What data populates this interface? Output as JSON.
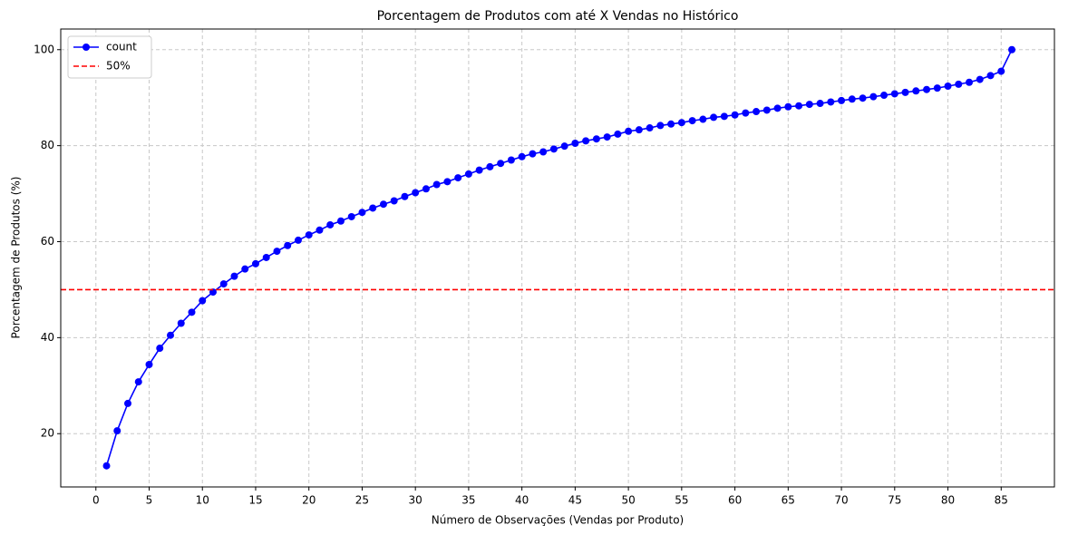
{
  "chart_data": {
    "type": "line",
    "title": "Porcentagem de Produtos com até X Vendas no Histórico",
    "xlabel": "Número de Observações (Vendas por Produto)",
    "ylabel": "Porcentagem de Produtos (%)",
    "x": [
      1,
      2,
      3,
      4,
      5,
      6,
      7,
      8,
      9,
      10,
      11,
      12,
      13,
      14,
      15,
      16,
      17,
      18,
      19,
      20,
      21,
      22,
      23,
      24,
      25,
      26,
      27,
      28,
      29,
      30,
      31,
      32,
      33,
      34,
      35,
      36,
      37,
      38,
      39,
      40,
      41,
      42,
      43,
      44,
      45,
      46,
      47,
      48,
      49,
      50,
      51,
      52,
      53,
      54,
      55,
      56,
      57,
      58,
      59,
      60,
      61,
      62,
      63,
      64,
      65,
      66,
      67,
      68,
      69,
      70,
      71,
      72,
      73,
      74,
      75,
      76,
      77,
      78,
      79,
      80,
      81,
      82,
      83,
      84,
      85,
      86
    ],
    "series": [
      {
        "name": "count",
        "color": "#0000ff",
        "marker": "circle",
        "values": [
          13.3,
          20.6,
          26.3,
          30.8,
          34.4,
          37.8,
          40.5,
          43.0,
          45.3,
          47.7,
          49.5,
          51.2,
          52.8,
          54.3,
          55.4,
          56.7,
          58.0,
          59.2,
          60.3,
          61.4,
          62.4,
          63.5,
          64.3,
          65.2,
          66.1,
          67.0,
          67.8,
          68.5,
          69.4,
          70.2,
          71.0,
          71.9,
          72.5,
          73.3,
          74.1,
          74.9,
          75.6,
          76.3,
          77.0,
          77.7,
          78.3,
          78.7,
          79.3,
          79.9,
          80.5,
          81.0,
          81.4,
          81.8,
          82.4,
          83.0,
          83.3,
          83.7,
          84.2,
          84.5,
          84.8,
          85.2,
          85.5,
          85.9,
          86.1,
          86.4,
          86.8,
          87.1,
          87.4,
          87.8,
          88.1,
          88.3,
          88.6,
          88.8,
          89.1,
          89.4,
          89.7,
          89.9,
          90.2,
          90.5,
          90.8,
          91.1,
          91.4,
          91.7,
          92.0,
          92.4,
          92.8,
          93.2,
          93.8,
          94.6,
          95.5,
          100
        ]
      }
    ],
    "hline": {
      "name": "50%",
      "value": 50,
      "color": "#ff0000"
    },
    "xlim": [
      -3.3,
      90.0
    ],
    "ylim": [
      8.9,
      104.3
    ],
    "xticks": [
      0,
      5,
      10,
      15,
      20,
      25,
      30,
      35,
      40,
      45,
      50,
      55,
      60,
      65,
      70,
      75,
      80,
      85
    ],
    "yticks": [
      20,
      40,
      60,
      80,
      100
    ],
    "grid": true,
    "legend": "upper left"
  }
}
